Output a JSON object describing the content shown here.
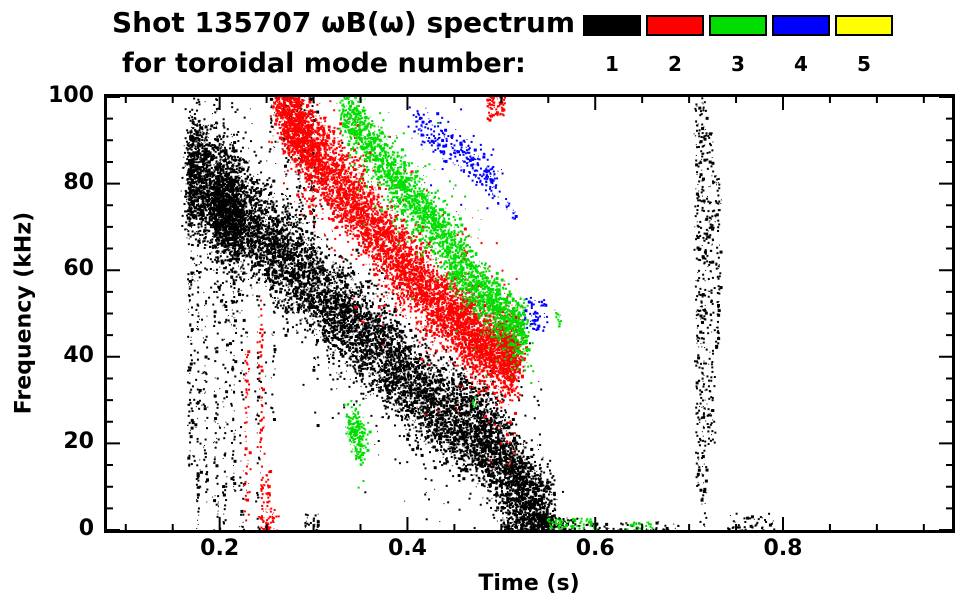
{
  "chart_data": {
    "type": "scatter",
    "title": "Shot 135707 ωB(ω) spectrum",
    "subtitle": "for toroidal mode number:",
    "xlabel": "Time (s)",
    "ylabel": "Frequency (kHz)",
    "xlim": [
      0.08,
      0.98
    ],
    "ylim": [
      0,
      100
    ],
    "xticks": [
      0.2,
      0.4,
      0.6,
      0.8
    ],
    "xtick_labels": [
      "0.2",
      "0.4",
      "0.6",
      "0.8"
    ],
    "yticks": [
      0,
      20,
      40,
      60,
      80,
      100
    ],
    "ytick_labels": [
      "0",
      "20",
      "40",
      "60",
      "80",
      "100"
    ],
    "x_minor_step": 0.05,
    "y_minor_step": 5,
    "grid": false,
    "legend_position": "top-right",
    "legend": [
      {
        "label": "1",
        "color": "#000000"
      },
      {
        "label": "2",
        "color": "#ff0000"
      },
      {
        "label": "3",
        "color": "#00dd00"
      },
      {
        "label": "4",
        "color": "#0000ff"
      },
      {
        "label": "5",
        "color": "#ffff00"
      }
    ],
    "series": [
      {
        "name": "toroidal mode n=1",
        "color": "#000000",
        "bands": [
          {
            "path": [
              [
                0.195,
                82
              ],
              [
                0.22,
                75
              ],
              [
                0.25,
                67
              ],
              [
                0.28,
                60
              ],
              [
                0.31,
                54
              ],
              [
                0.34,
                48
              ],
              [
                0.37,
                42
              ],
              [
                0.4,
                35
              ],
              [
                0.43,
                29
              ],
              [
                0.46,
                25
              ],
              [
                0.485,
                21
              ],
              [
                0.51,
                13
              ],
              [
                0.53,
                6
              ],
              [
                0.55,
                2
              ]
            ],
            "spread": 5.5,
            "tjitter": 0.006,
            "points": 9000
          },
          {
            "path": [
              [
                0.165,
                80
              ],
              [
                0.172,
                83
              ],
              [
                0.18,
                81
              ],
              [
                0.187,
                78
              ]
            ],
            "spread": 6,
            "tjitter": 0.003,
            "points": 900
          },
          {
            "path": [
              [
                0.192,
                76
              ],
              [
                0.2,
                74
              ],
              [
                0.21,
                72
              ],
              [
                0.222,
                70
              ]
            ],
            "spread": 5,
            "tjitter": 0.004,
            "points": 1100
          }
        ],
        "streaks": [
          {
            "t": 0.168,
            "f0": 15,
            "f1": 96,
            "n": 130,
            "w": 0.002
          },
          {
            "t": 0.176,
            "f0": 0,
            "f1": 100,
            "n": 110,
            "w": 0.0015
          },
          {
            "t": 0.184,
            "f0": 5,
            "f1": 94,
            "n": 90,
            "w": 0.0015
          },
          {
            "t": 0.196,
            "f0": 0,
            "f1": 100,
            "n": 140,
            "w": 0.002
          },
          {
            "t": 0.205,
            "f0": 0,
            "f1": 96,
            "n": 80,
            "w": 0.0015
          },
          {
            "t": 0.214,
            "f0": 8,
            "f1": 100,
            "n": 110,
            "w": 0.002
          },
          {
            "t": 0.223,
            "f0": 0,
            "f1": 90,
            "n": 70,
            "w": 0.0015
          },
          {
            "t": 0.24,
            "f0": 0,
            "f1": 88,
            "n": 55,
            "w": 0.0015
          },
          {
            "t": 0.256,
            "f0": 25,
            "f1": 100,
            "n": 60,
            "w": 0.0015
          },
          {
            "t": 0.271,
            "f0": 45,
            "f1": 100,
            "n": 80,
            "w": 0.002
          },
          {
            "t": 0.285,
            "f0": 55,
            "f1": 100,
            "n": 100,
            "w": 0.0025
          },
          {
            "t": 0.298,
            "f0": 62,
            "f1": 100,
            "n": 70,
            "w": 0.002
          },
          {
            "t": 0.708,
            "f0": 10,
            "f1": 100,
            "n": 130,
            "w": 0.0015
          },
          {
            "t": 0.714,
            "f0": 0,
            "f1": 100,
            "n": 190,
            "w": 0.002
          },
          {
            "t": 0.722,
            "f0": 20,
            "f1": 92,
            "n": 150,
            "w": 0.002
          },
          {
            "t": 0.73,
            "f0": 42,
            "f1": 82,
            "n": 70,
            "w": 0.0015
          }
        ],
        "boxes": [
          {
            "t0": 0.5,
            "t1": 0.58,
            "f0": 0,
            "f1": 3,
            "n": 200
          },
          {
            "t0": 0.58,
            "t1": 0.69,
            "f0": 0,
            "f1": 2,
            "n": 55
          },
          {
            "t0": 0.74,
            "t1": 0.79,
            "f0": 0,
            "f1": 4,
            "n": 45
          },
          {
            "t0": 0.29,
            "t1": 0.305,
            "f0": 0,
            "f1": 4,
            "n": 30
          }
        ],
        "dots": []
      },
      {
        "name": "toroidal mode n=2",
        "color": "#ff0000",
        "bands": [
          {
            "path": [
              [
                0.262,
                101
              ],
              [
                0.28,
                94
              ],
              [
                0.3,
                87
              ],
              [
                0.33,
                79
              ],
              [
                0.36,
                71
              ],
              [
                0.39,
                62
              ],
              [
                0.42,
                55
              ],
              [
                0.45,
                49
              ],
              [
                0.475,
                44
              ],
              [
                0.5,
                41
              ],
              [
                0.515,
                40
              ]
            ],
            "spread": 4.5,
            "tjitter": 0.005,
            "points": 7000
          }
        ],
        "streaks": [
          {
            "t": 0.228,
            "f0": 0,
            "f1": 42,
            "n": 55,
            "w": 0.0015
          },
          {
            "t": 0.243,
            "f0": 0,
            "f1": 55,
            "n": 75,
            "w": 0.0015
          },
          {
            "t": 0.251,
            "f0": 0,
            "f1": 14,
            "n": 30,
            "w": 0.0015
          }
        ],
        "boxes": [
          {
            "t0": 0.244,
            "t1": 0.262,
            "f0": 0,
            "f1": 6,
            "n": 40
          },
          {
            "t0": 0.484,
            "t1": 0.503,
            "f0": 95,
            "f1": 101,
            "n": 90
          }
        ],
        "dots": [
          [
            0.52,
            38
          ],
          [
            0.505,
            22
          ]
        ]
      },
      {
        "name": "toroidal mode n=3",
        "color": "#00dd00",
        "bands": [
          {
            "path": [
              [
                0.33,
                98
              ],
              [
                0.35,
                92
              ],
              [
                0.37,
                86
              ],
              [
                0.39,
                80
              ],
              [
                0.41,
                75
              ],
              [
                0.43,
                70
              ],
              [
                0.45,
                63
              ],
              [
                0.47,
                57
              ],
              [
                0.49,
                52
              ],
              [
                0.51,
                47
              ],
              [
                0.525,
                45
              ]
            ],
            "spread": 3.5,
            "tjitter": 0.004,
            "points": 2800
          },
          {
            "path": [
              [
                0.337,
                25
              ],
              [
                0.345,
                22
              ],
              [
                0.353,
                20
              ]
            ],
            "spread": 2.5,
            "tjitter": 0.003,
            "points": 230
          }
        ],
        "streaks": [],
        "boxes": [
          {
            "t0": 0.545,
            "t1": 0.6,
            "f0": 0,
            "f1": 3,
            "n": 70
          },
          {
            "t0": 0.63,
            "t1": 0.66,
            "f0": 0,
            "f1": 2,
            "n": 28
          }
        ],
        "dots": [
          [
            0.558,
            50
          ],
          [
            0.562,
            48
          ],
          [
            0.47,
            30
          ]
        ]
      },
      {
        "name": "toroidal mode n=4",
        "color": "#0000ff",
        "bands": [
          {
            "path": [
              [
                0.405,
                95
              ],
              [
                0.425,
                92
              ],
              [
                0.445,
                89
              ],
              [
                0.465,
                86
              ],
              [
                0.48,
                83
              ],
              [
                0.495,
                79
              ]
            ],
            "spread": 2.2,
            "tjitter": 0.004,
            "points": 300
          }
        ],
        "streaks": [],
        "boxes": [
          {
            "t0": 0.523,
            "t1": 0.548,
            "f0": 46,
            "f1": 54,
            "n": 60
          }
        ],
        "dots": [
          [
            0.505,
            76
          ],
          [
            0.512,
            73
          ]
        ]
      },
      {
        "name": "toroidal mode n=5",
        "color": "#ffff00",
        "bands": [],
        "streaks": [],
        "boxes": [],
        "dots": []
      }
    ]
  }
}
